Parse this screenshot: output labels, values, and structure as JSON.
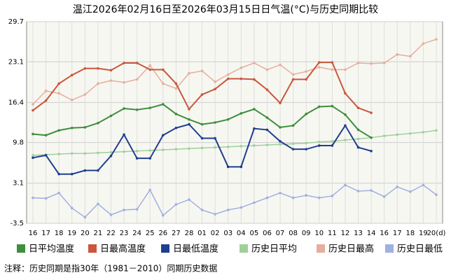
{
  "chart_data": {
    "type": "line",
    "title": "温江2026年02月16日至2026年03月15日日气温(°C)与历史同期比较",
    "categories": [
      "16",
      "17",
      "18",
      "19",
      "20",
      "21",
      "22",
      "23",
      "24",
      "25",
      "26",
      "27",
      "28",
      "01",
      "02",
      "03",
      "04",
      "05",
      "06",
      "07",
      "08",
      "09",
      "10",
      "11",
      "12",
      "13",
      "14",
      "16",
      "17",
      "18",
      "19",
      "20(d)"
    ],
    "ylim": [
      -3.5,
      29.7
    ],
    "yticks": [
      -3.5,
      3.1,
      9.8,
      16.4,
      23.1,
      29.7
    ],
    "grid": true,
    "legend": "bottom",
    "series": [
      {
        "name": "日平均温度",
        "color": "#3d8f3d",
        "values": [
          11.2,
          11.0,
          11.8,
          12.2,
          12.3,
          13.0,
          14.2,
          15.4,
          15.2,
          15.5,
          16.1,
          14.5,
          13.6,
          12.8,
          13.1,
          13.6,
          14.6,
          15.3,
          13.9,
          12.3,
          12.6,
          14.5,
          15.7,
          15.8,
          14.4,
          11.9,
          10.6,
          null,
          null,
          null,
          null,
          null
        ]
      },
      {
        "name": "日最高温度",
        "color": "#c9573a",
        "values": [
          15.1,
          16.7,
          19.5,
          20.9,
          22.0,
          22.0,
          21.7,
          22.9,
          22.9,
          21.8,
          21.8,
          19.5,
          15.3,
          17.7,
          18.6,
          20.3,
          20.3,
          20.2,
          18.5,
          16.3,
          20.2,
          20.2,
          23.0,
          23.0,
          17.9,
          15.5,
          14.7,
          null,
          null,
          null,
          null,
          null
        ]
      },
      {
        "name": "日最低温度",
        "color": "#1f3f8f",
        "values": [
          7.3,
          7.7,
          4.6,
          4.6,
          5.2,
          5.2,
          7.6,
          11.1,
          7.2,
          7.2,
          11.0,
          12.2,
          12.8,
          10.5,
          10.5,
          5.8,
          5.8,
          12.1,
          11.9,
          10.0,
          8.7,
          8.7,
          9.3,
          9.3,
          12.6,
          9.0,
          8.4,
          null,
          null,
          null,
          null,
          null
        ]
      },
      {
        "name": "历史日平均",
        "color": "#9fd09a",
        "values": [
          7.7,
          7.8,
          7.9,
          8.0,
          8.0,
          8.1,
          8.2,
          8.3,
          8.4,
          8.5,
          8.6,
          8.7,
          8.8,
          8.9,
          9.0,
          9.1,
          9.2,
          9.3,
          9.4,
          9.5,
          9.6,
          9.7,
          9.9,
          10.0,
          10.2,
          10.4,
          10.6,
          10.9,
          11.1,
          11.3,
          11.5,
          11.8
        ]
      },
      {
        "name": "历史日最高",
        "color": "#e6ae9c",
        "values": [
          16.1,
          18.3,
          17.9,
          16.8,
          17.7,
          19.5,
          20.0,
          19.7,
          20.2,
          22.5,
          19.5,
          18.7,
          21.2,
          21.6,
          19.8,
          21.0,
          22.1,
          22.9,
          21.8,
          22.6,
          21.0,
          21.5,
          22.2,
          21.8,
          21.8,
          22.9,
          22.8,
          22.9,
          24.3,
          24.0,
          26.1,
          26.8
        ]
      },
      {
        "name": "历史日最低",
        "color": "#a0b0e0",
        "values": [
          0.7,
          0.6,
          1.5,
          -1.0,
          -2.5,
          -0.3,
          -2.1,
          -1.3,
          -1.2,
          2.0,
          -2.2,
          -0.4,
          0.4,
          -1.3,
          -2.0,
          -1.3,
          -0.9,
          -0.1,
          0.7,
          1.5,
          0.7,
          1.1,
          0.7,
          1.0,
          2.8,
          1.8,
          1.9,
          0.9,
          2.5,
          1.7,
          2.8,
          1.2
        ]
      }
    ],
    "note": "注释：历史同期是指30年（1981－2010）同期历史数据"
  }
}
